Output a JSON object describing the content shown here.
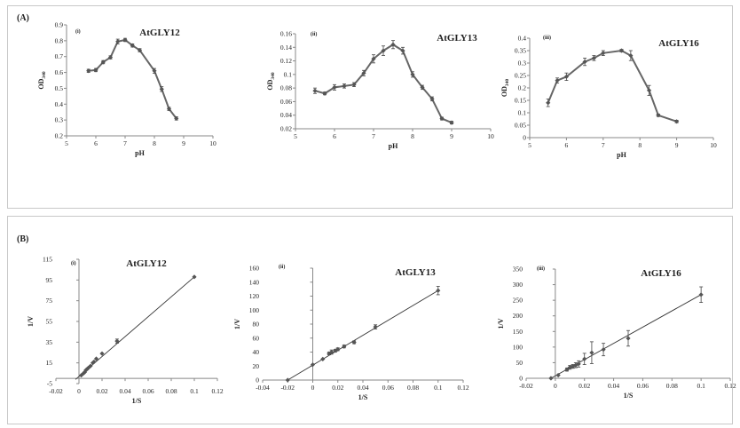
{
  "panels": [
    {
      "label": "(A)"
    },
    {
      "label": "(B)"
    }
  ],
  "chart_data": [
    {
      "type": "line",
      "panel": "A",
      "sub": "(i)",
      "title": "AtGLY12",
      "xlabel": "pH",
      "ylabel": "OD",
      "ylabel_sub": "340",
      "xlim": [
        5,
        10
      ],
      "ylim": [
        0.2,
        0.9
      ],
      "xticks": [
        5,
        6,
        7,
        8,
        9,
        10
      ],
      "xtick_labels": [
        "5",
        "6",
        "7",
        "8",
        "9",
        "10"
      ],
      "yticks": [
        0.2,
        0.3,
        0.4,
        0.5,
        0.6,
        0.7,
        0.8,
        0.9
      ],
      "ytick_labels": [
        "0.2",
        "0.3",
        "0.4",
        "0.5",
        "0.6",
        "0.7",
        "0.8",
        "0.9"
      ],
      "x": [
        5.75,
        6.0,
        6.25,
        6.5,
        6.75,
        7.0,
        7.25,
        7.5,
        8.0,
        8.25,
        8.5,
        8.75
      ],
      "y": [
        0.61,
        0.615,
        0.665,
        0.695,
        0.795,
        0.805,
        0.77,
        0.74,
        0.61,
        0.495,
        0.37,
        0.31
      ],
      "err": [
        0.01,
        0.01,
        0.01,
        0.01,
        0.015,
        0.01,
        0.01,
        0.01,
        0.015,
        0.015,
        0.01,
        0.01
      ],
      "trendline": false
    },
    {
      "type": "line",
      "panel": "A",
      "sub": "(ii)",
      "title": "AtGLY13",
      "xlabel": "pH",
      "ylabel": "OD",
      "ylabel_sub": "340",
      "xlim": [
        5,
        10
      ],
      "ylim": [
        0.02,
        0.16
      ],
      "xticks": [
        5,
        6,
        7,
        8,
        9,
        10
      ],
      "xtick_labels": [
        "5",
        "6",
        "7",
        "8",
        "9",
        "10"
      ],
      "yticks": [
        0.02,
        0.04,
        0.06,
        0.08,
        0.1,
        0.12,
        0.14,
        0.16
      ],
      "ytick_labels": [
        "0.02",
        "0.04",
        "0.06",
        "0.08",
        "0.1",
        "0.12",
        "0.14",
        "0.16"
      ],
      "x": [
        5.5,
        5.75,
        6.0,
        6.25,
        6.5,
        6.75,
        7.0,
        7.25,
        7.5,
        7.75,
        8.0,
        8.25,
        8.5,
        8.75,
        9.0
      ],
      "y": [
        0.076,
        0.072,
        0.081,
        0.083,
        0.085,
        0.102,
        0.123,
        0.135,
        0.144,
        0.135,
        0.1,
        0.081,
        0.064,
        0.035,
        0.029
      ],
      "err": [
        0.004,
        0.002,
        0.004,
        0.003,
        0.003,
        0.004,
        0.006,
        0.007,
        0.006,
        0.005,
        0.004,
        0.003,
        0.003,
        0.002,
        0.002
      ],
      "trendline": false
    },
    {
      "type": "line",
      "panel": "A",
      "sub": "(iii)",
      "title": "AtGLY16",
      "xlabel": "pH",
      "ylabel": "OD",
      "ylabel_sub": "340",
      "xlim": [
        5,
        10
      ],
      "ylim": [
        0,
        0.4
      ],
      "xticks": [
        5,
        6,
        7,
        8,
        9,
        10
      ],
      "xtick_labels": [
        "5",
        "6",
        "7",
        "8",
        "9",
        "10"
      ],
      "yticks": [
        0,
        0.05,
        0.1,
        0.15,
        0.2,
        0.25,
        0.3,
        0.35,
        0.4
      ],
      "ytick_labels": [
        "0",
        "0.05",
        "0.1",
        "0.15",
        "0.2",
        "0.25",
        "0.3",
        "0.35",
        "0.4"
      ],
      "x": [
        5.5,
        5.75,
        6.0,
        6.5,
        6.75,
        7.0,
        7.5,
        7.75,
        8.25,
        8.5,
        9.0
      ],
      "y": [
        0.14,
        0.23,
        0.245,
        0.305,
        0.32,
        0.34,
        0.35,
        0.33,
        0.19,
        0.09,
        0.065
      ],
      "err": [
        0.015,
        0.01,
        0.015,
        0.015,
        0.01,
        0.01,
        0.005,
        0.02,
        0.02,
        0.005,
        0.005
      ],
      "trendline": false
    },
    {
      "type": "scatter",
      "panel": "B",
      "sub": "(i)",
      "title": "AtGLY12",
      "xlabel": "1/S",
      "ylabel": "1/V",
      "xlim": [
        -0.02,
        0.12
      ],
      "ylim": [
        -5,
        115
      ],
      "xticks": [
        -0.02,
        0,
        0.02,
        0.04,
        0.06,
        0.08,
        0.1,
        0.12
      ],
      "xtick_labels": [
        "-0.02",
        "0",
        "0.02",
        "0.04",
        "0.06",
        "0.08",
        "0.1",
        "0.12"
      ],
      "yticks": [
        -5,
        15,
        35,
        55,
        75,
        95,
        115
      ],
      "ytick_labels": [
        "-5",
        "15",
        "35",
        "55",
        "75",
        "95",
        "115"
      ],
      "x": [
        0.002,
        0.004,
        0.005,
        0.006,
        0.007,
        0.008,
        0.01,
        0.012,
        0.013,
        0.015,
        0.02,
        0.033,
        0.1
      ],
      "y": [
        3,
        5,
        6,
        8,
        9,
        10,
        12,
        15,
        16,
        19,
        24,
        36,
        98
      ],
      "err": [
        0,
        0,
        0,
        0,
        0,
        0,
        0,
        0,
        0,
        0,
        0,
        2,
        0
      ],
      "trendline": true,
      "trend_x": [
        -0.003,
        0.1
      ],
      "trend_y": [
        -1,
        98
      ]
    },
    {
      "type": "scatter",
      "panel": "B",
      "sub": "(ii)",
      "title": "AtGLY13",
      "xlabel": "1/S",
      "ylabel": "1/V",
      "xlim": [
        -0.04,
        0.12
      ],
      "ylim": [
        0,
        160
      ],
      "xticks": [
        -0.04,
        -0.02,
        0,
        0.02,
        0.04,
        0.06,
        0.08,
        0.1,
        0.12
      ],
      "xtick_labels": [
        "-0.04",
        "-0.02",
        "0",
        "0.02",
        "0.04",
        "0.06",
        "0.08",
        "0.1",
        "0.12"
      ],
      "yticks": [
        0,
        20,
        40,
        60,
        80,
        100,
        120,
        140,
        160
      ],
      "ytick_labels": [
        "0",
        "20",
        "40",
        "60",
        "80",
        "100",
        "120",
        "140",
        "160"
      ],
      "x": [
        -0.02,
        0,
        0.008,
        0.013,
        0.015,
        0.018,
        0.02,
        0.025,
        0.033,
        0.05,
        0.1
      ],
      "y": [
        0,
        22,
        30,
        38,
        40,
        42,
        44,
        48,
        54,
        76,
        128
      ],
      "err": [
        0,
        0,
        0,
        2,
        3,
        2,
        2,
        2,
        2,
        3,
        6
      ],
      "trendline": true,
      "trend_x": [
        -0.02,
        0.1
      ],
      "trend_y": [
        0,
        128
      ]
    },
    {
      "type": "scatter",
      "panel": "B",
      "sub": "(iii)",
      "title": "AtGLY16",
      "xlabel": "1/S",
      "ylabel": "1/V",
      "xlim": [
        -0.02,
        0.12
      ],
      "ylim": [
        0,
        350
      ],
      "xticks": [
        -0.02,
        0,
        0.02,
        0.04,
        0.06,
        0.08,
        0.1,
        0.12
      ],
      "xtick_labels": [
        "-0.02",
        "0",
        "0.02",
        "0.04",
        "0.06",
        "0.08",
        "0.1",
        "0.12"
      ],
      "yticks": [
        0,
        50,
        100,
        150,
        200,
        250,
        300,
        350
      ],
      "ytick_labels": [
        "0",
        "50",
        "100",
        "150",
        "200",
        "250",
        "300",
        "350"
      ],
      "x": [
        -0.003,
        0.002,
        0.008,
        0.01,
        0.012,
        0.014,
        0.016,
        0.02,
        0.025,
        0.033,
        0.05,
        0.1
      ],
      "y": [
        0,
        10,
        28,
        35,
        38,
        42,
        46,
        62,
        82,
        92,
        128,
        268
      ],
      "err": [
        0,
        0,
        5,
        6,
        6,
        8,
        10,
        18,
        35,
        20,
        25,
        25
      ],
      "trendline": true,
      "trend_x": [
        -0.003,
        0.1
      ],
      "trend_y": [
        0,
        268
      ]
    }
  ]
}
